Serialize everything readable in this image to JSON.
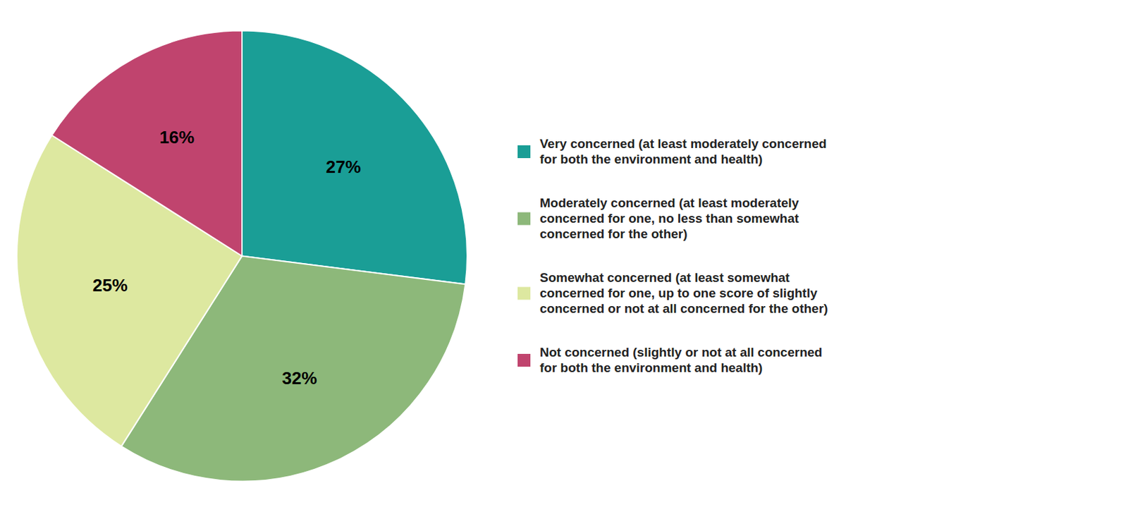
{
  "chart_data": {
    "type": "pie",
    "categories": [
      "Very concerned (at least moderately concerned\nfor both the environment and health)",
      "Moderately concerned (at least moderately\nconcerned for one, no less than somewhat\nconcerned for the other)",
      "Somewhat concerned (at least somewhat\nconcerned for one, up to one score of slightly\nconcerned or not at all concerned for the other)",
      "Not concerned (slightly or not at all concerned\nfor both the environment and health)"
    ],
    "values": [
      27,
      32,
      25,
      16
    ],
    "value_labels": [
      "27%",
      "32%",
      "25%",
      "16%"
    ],
    "colors": [
      "#1a9e96",
      "#8db87a",
      "#dde8a0",
      "#c0446e"
    ],
    "data_labels": true,
    "legend": "right"
  }
}
